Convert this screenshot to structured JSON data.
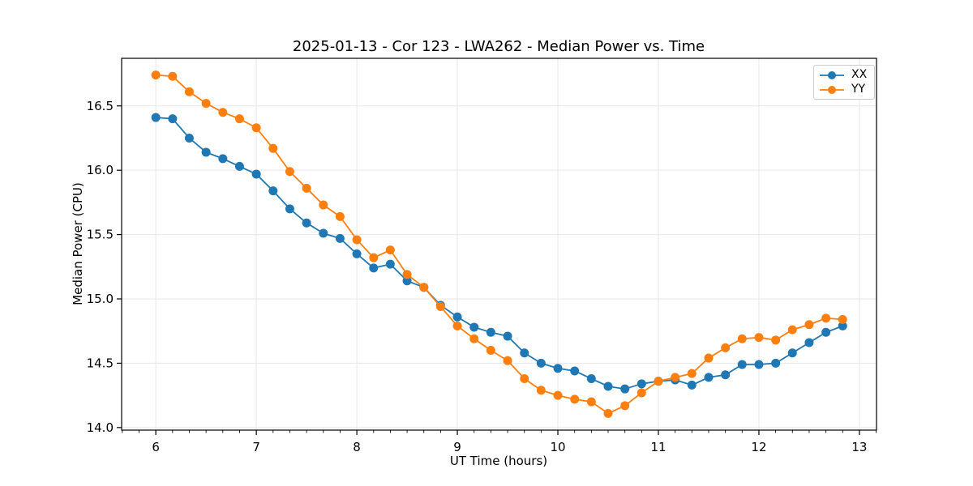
{
  "chart_data": {
    "type": "line",
    "title": "2025-01-13 - Cor 123 - LWA262 - Median Power vs. Time",
    "xlabel": "UT Time (hours)",
    "ylabel": "Median Power (CPU)",
    "xlim": [
      5.66,
      13.17
    ],
    "ylim": [
      13.98,
      16.87
    ],
    "x_ticks": [
      6,
      7,
      8,
      9,
      10,
      11,
      12,
      13
    ],
    "x_tick_labels": [
      "6",
      "7",
      "8",
      "9",
      "10",
      "11",
      "12",
      "13"
    ],
    "y_ticks": [
      14.0,
      14.5,
      15.0,
      15.5,
      16.0,
      16.5
    ],
    "y_tick_labels": [
      "14.0",
      "14.5",
      "15.0",
      "15.5",
      "16.0",
      "16.5"
    ],
    "x_minor_step": 0.166667,
    "grid": true,
    "grid_color": "#e7e7e7",
    "legend_position": "top-right",
    "x": [
      6.0,
      6.167,
      6.333,
      6.5,
      6.667,
      6.833,
      7.0,
      7.167,
      7.333,
      7.5,
      7.667,
      7.833,
      8.0,
      8.167,
      8.333,
      8.5,
      8.667,
      8.833,
      9.0,
      9.167,
      9.333,
      9.5,
      9.667,
      9.833,
      10.0,
      10.167,
      10.333,
      10.5,
      10.667,
      10.833,
      11.0,
      11.167,
      11.333,
      11.5,
      11.667,
      11.833,
      12.0,
      12.167,
      12.333,
      12.5,
      12.667,
      12.833
    ],
    "series": [
      {
        "name": "XX",
        "color": "#1f77b4",
        "values": [
          16.41,
          16.4,
          16.25,
          16.14,
          16.09,
          16.03,
          15.97,
          15.84,
          15.7,
          15.59,
          15.51,
          15.47,
          15.35,
          15.24,
          15.27,
          15.14,
          15.09,
          14.95,
          14.86,
          14.78,
          14.74,
          14.71,
          14.58,
          14.5,
          14.46,
          14.44,
          14.38,
          14.32,
          14.3,
          14.34,
          14.36,
          14.37,
          14.33,
          14.39,
          14.41,
          14.49,
          14.49,
          14.5,
          14.58,
          14.66,
          14.74,
          14.79
        ]
      },
      {
        "name": "YY",
        "color": "#ff7f0e",
        "values": [
          16.74,
          16.73,
          16.61,
          16.52,
          16.45,
          16.4,
          16.33,
          16.17,
          15.99,
          15.86,
          15.73,
          15.64,
          15.46,
          15.32,
          15.38,
          15.19,
          15.09,
          14.94,
          14.79,
          14.69,
          14.6,
          14.52,
          14.38,
          14.29,
          14.25,
          14.22,
          14.2,
          14.11,
          14.17,
          14.27,
          14.36,
          14.39,
          14.42,
          14.54,
          14.62,
          14.69,
          14.7,
          14.68,
          14.76,
          14.8,
          14.85,
          14.84
        ]
      }
    ]
  }
}
